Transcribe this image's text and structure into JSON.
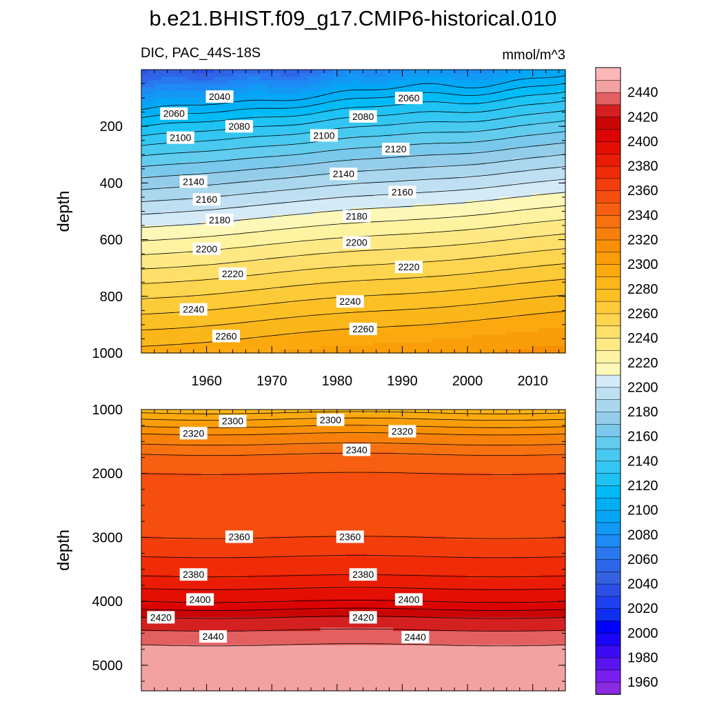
{
  "chart_data": {
    "type": "heatmap",
    "title": "b.e21.BHIST.f09_g17.CMIP6-historical.010",
    "subtitle_left": "DIC, PAC_44S-18S",
    "units": "mmol/m^3",
    "colorbar": {
      "levels": [
        1960,
        1970,
        1980,
        1990,
        2000,
        2010,
        2020,
        2030,
        2040,
        2050,
        2060,
        2070,
        2080,
        2090,
        2100,
        2110,
        2120,
        2130,
        2140,
        2150,
        2160,
        2170,
        2180,
        2190,
        2200,
        2210,
        2220,
        2230,
        2240,
        2250,
        2260,
        2270,
        2280,
        2290,
        2300,
        2310,
        2320,
        2330,
        2340,
        2350,
        2360,
        2370,
        2380,
        2390,
        2400,
        2410,
        2420,
        2430,
        2440,
        2450
      ],
      "labels": [
        "1960",
        "1980",
        "2000",
        "2020",
        "2040",
        "2060",
        "2080",
        "2100",
        "2120",
        "2140",
        "2160",
        "2180",
        "2200",
        "2220",
        "2240",
        "2260",
        "2280",
        "2300",
        "2320",
        "2340",
        "2360",
        "2380",
        "2400",
        "2420",
        "2440"
      ],
      "colors": [
        "#8a2be2",
        "#7a1ff0",
        "#5a14f0",
        "#3a0cf5",
        "#1a05f8",
        "#0000ff",
        "#0f2ff0",
        "#1e40f0",
        "#2b50e8",
        "#3560e0",
        "#2d66e8",
        "#2a78f0",
        "#1e8af5",
        "#1298f5",
        "#05a6f5",
        "#00b0f5",
        "#00bbf5",
        "#1ec3f3",
        "#33c6f3",
        "#48c9f0",
        "#62ccef",
        "#7ac9ec",
        "#94cdea",
        "#aad7ee",
        "#bfdff2",
        "#d4eaf7",
        "#fdf8b8",
        "#fef3a0",
        "#fee985",
        "#fedf6a",
        "#fdd54e",
        "#fdca38",
        "#fcc024",
        "#fbb61a",
        "#fba90f",
        "#f99d08",
        "#f88f05",
        "#f7800a",
        "#f77110",
        "#f66010",
        "#f54e0e",
        "#f43d0c",
        "#f02c08",
        "#ea1c05",
        "#e40e03",
        "#db0303",
        "#ca0505",
        "#d42020",
        "#e36060",
        "#f3a2a2",
        "#fcb8b8"
      ]
    },
    "panels": [
      {
        "name": "upper",
        "ylabel": "depth",
        "ylim": [
          0,
          1000
        ],
        "yticks": [
          200,
          400,
          600,
          800,
          1000
        ],
        "xlim": [
          1950,
          2015
        ],
        "xticks": [
          1960,
          1970,
          1980,
          1990,
          2000,
          2010
        ],
        "contour_labels": [
          {
            "text": "2040",
            "x": 1962,
            "y": 95
          },
          {
            "text": "2060",
            "x": 1991,
            "y": 100
          },
          {
            "text": "2060",
            "x": 1955,
            "y": 155
          },
          {
            "text": "2080",
            "x": 1984,
            "y": 165
          },
          {
            "text": "2080",
            "x": 1965,
            "y": 200
          },
          {
            "text": "2100",
            "x": 1956,
            "y": 240
          },
          {
            "text": "2100",
            "x": 1978,
            "y": 232
          },
          {
            "text": "2120",
            "x": 1989,
            "y": 280
          },
          {
            "text": "2140",
            "x": 1958,
            "y": 395
          },
          {
            "text": "2140",
            "x": 1981,
            "y": 368
          },
          {
            "text": "2160",
            "x": 1960,
            "y": 458
          },
          {
            "text": "2160",
            "x": 1990,
            "y": 432
          },
          {
            "text": "2180",
            "x": 1962,
            "y": 530
          },
          {
            "text": "2180",
            "x": 1983,
            "y": 517
          },
          {
            "text": "2200",
            "x": 1960,
            "y": 632
          },
          {
            "text": "2200",
            "x": 1983,
            "y": 610
          },
          {
            "text": "2220",
            "x": 1964,
            "y": 720
          },
          {
            "text": "2220",
            "x": 1991,
            "y": 696
          },
          {
            "text": "2240",
            "x": 1958,
            "y": 846
          },
          {
            "text": "2240",
            "x": 1982,
            "y": 818
          },
          {
            "text": "2260",
            "x": 1963,
            "y": 940
          },
          {
            "text": "2260",
            "x": 1984,
            "y": 915
          }
        ]
      },
      {
        "name": "lower",
        "ylabel": "depth",
        "ylim": [
          1000,
          5400
        ],
        "yticks": [
          1000,
          2000,
          3000,
          4000,
          5000
        ],
        "xlim": [
          1950,
          2015
        ],
        "contour_labels": [
          {
            "text": "2300",
            "x": 1964,
            "y": 1180
          },
          {
            "text": "2300",
            "x": 1979,
            "y": 1160
          },
          {
            "text": "2320",
            "x": 1958,
            "y": 1370
          },
          {
            "text": "2320",
            "x": 1990,
            "y": 1340
          },
          {
            "text": "2340",
            "x": 1983,
            "y": 1630
          },
          {
            "text": "2360",
            "x": 1965,
            "y": 2990
          },
          {
            "text": "2360",
            "x": 1982,
            "y": 2990
          },
          {
            "text": "2380",
            "x": 1958,
            "y": 3580
          },
          {
            "text": "2380",
            "x": 1984,
            "y": 3580
          },
          {
            "text": "2400",
            "x": 1959,
            "y": 3970
          },
          {
            "text": "2400",
            "x": 1991,
            "y": 3970
          },
          {
            "text": "2420",
            "x": 1953,
            "y": 4250
          },
          {
            "text": "2420",
            "x": 1984,
            "y": 4250
          },
          {
            "text": "2440",
            "x": 1961,
            "y": 4550
          },
          {
            "text": "2440",
            "x": 1992,
            "y": 4560
          }
        ]
      }
    ]
  }
}
